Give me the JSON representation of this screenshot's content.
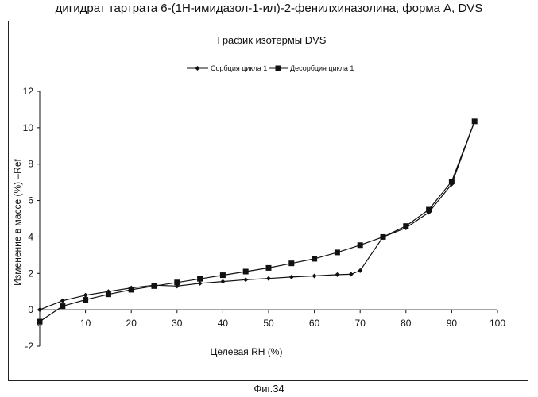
{
  "page_title": "дигидрат тартрата 6-(1Н-имидазол-1-ил)-2-фенилхиназолина, форма А, DVS",
  "figure_caption": "Фиг.34",
  "chart_data": {
    "type": "line",
    "title": "График изотермы DVS",
    "xlabel": "Целевая RH (%)",
    "ylabel": "Изменение в массе (%) –Ref",
    "xlim": [
      0,
      100
    ],
    "ylim": [
      -2,
      12
    ],
    "xticks": [
      0,
      10,
      20,
      30,
      40,
      50,
      60,
      70,
      80,
      90,
      100
    ],
    "yticks": [
      -2,
      0,
      2,
      4,
      6,
      8,
      10,
      12
    ],
    "grid": false,
    "legend_position": "top",
    "series": [
      {
        "name": "Сорбция цикла 1",
        "marker": "diamond",
        "x": [
          0,
          5,
          10,
          15,
          20,
          25,
          30,
          35,
          40,
          45,
          50,
          55,
          60,
          65,
          68,
          70,
          75,
          80,
          85,
          90,
          95
        ],
        "y": [
          0,
          0.5,
          0.8,
          1.0,
          1.2,
          1.35,
          1.3,
          1.45,
          1.55,
          1.65,
          1.72,
          1.8,
          1.86,
          1.93,
          1.95,
          2.15,
          4.0,
          4.5,
          5.35,
          6.9,
          10.35
        ]
      },
      {
        "name": "Десорбция цикла 1",
        "marker": "square",
        "x": [
          0,
          5,
          10,
          15,
          20,
          25,
          30,
          35,
          40,
          45,
          50,
          55,
          60,
          65,
          70,
          75,
          80,
          85,
          90,
          95
        ],
        "y": [
          -0.65,
          0.2,
          0.55,
          0.85,
          1.1,
          1.3,
          1.5,
          1.7,
          1.9,
          2.1,
          2.3,
          2.55,
          2.8,
          3.15,
          3.55,
          4.0,
          4.6,
          5.5,
          7.05,
          10.35
        ]
      }
    ]
  }
}
